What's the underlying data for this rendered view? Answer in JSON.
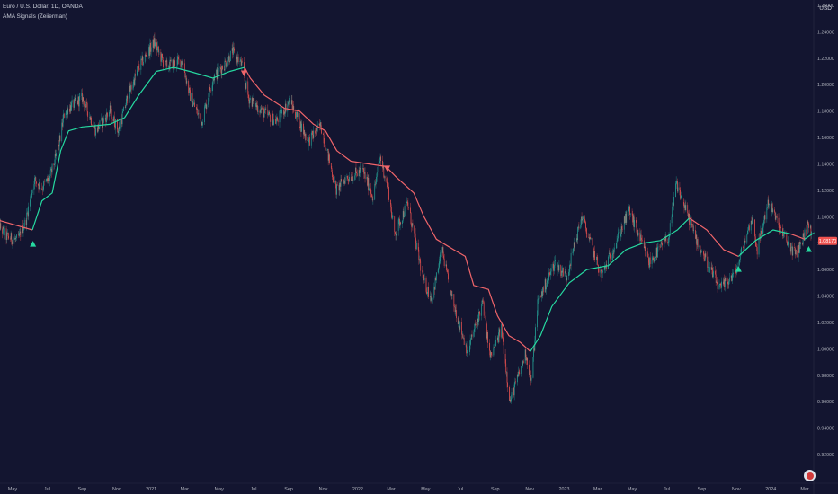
{
  "header": {
    "symbol_line": "Euro / U.S. Dollar, 1D, OANDA",
    "indicator_line": "AMA Signals (Zeiierman)"
  },
  "price_scale": {
    "currency": "USD",
    "last_price_label": "1.08170"
  },
  "colors": {
    "background": "#131530",
    "bullish": "#26d9a0",
    "bearish": "#f0656a",
    "candle_up": "#26a69a",
    "candle_down": "#ef5350",
    "axis_text": "#b2b5be"
  },
  "icons": {
    "badge": "flag-icon"
  },
  "chart_data": {
    "type": "line",
    "title": "Euro / U.S. Dollar, 1D, OANDA",
    "xlabel": "",
    "ylabel": "",
    "y_ticks": [
      "0.92000",
      "0.94000",
      "0.96000",
      "0.98000",
      "1.00000",
      "1.02000",
      "1.04000",
      "1.06000",
      "1.08000",
      "1.10000",
      "1.12000",
      "1.14000",
      "1.16000",
      "1.18000",
      "1.20000",
      "1.22000",
      "1.24000",
      "1.26000"
    ],
    "ylim": [
      0.915,
      1.265
    ],
    "x_range": [
      "2020-05-01",
      "2024-03-18"
    ],
    "x_ticks": [
      {
        "label": "May",
        "date": "2020-05-01"
      },
      {
        "label": "Jul",
        "date": "2020-07-01"
      },
      {
        "label": "Sep",
        "date": "2020-09-01"
      },
      {
        "label": "Nov",
        "date": "2020-11-01"
      },
      {
        "label": "2021",
        "date": "2021-01-01"
      },
      {
        "label": "Mar",
        "date": "2021-03-01"
      },
      {
        "label": "May",
        "date": "2021-05-01"
      },
      {
        "label": "Jul",
        "date": "2021-07-01"
      },
      {
        "label": "Sep",
        "date": "2021-09-01"
      },
      {
        "label": "Nov",
        "date": "2021-11-01"
      },
      {
        "label": "2022",
        "date": "2022-01-01"
      },
      {
        "label": "Mar",
        "date": "2022-03-01"
      },
      {
        "label": "May",
        "date": "2022-05-01"
      },
      {
        "label": "Jul",
        "date": "2022-07-01"
      },
      {
        "label": "Sep",
        "date": "2022-09-01"
      },
      {
        "label": "Nov",
        "date": "2022-11-01"
      },
      {
        "label": "2023",
        "date": "2023-01-01"
      },
      {
        "label": "Mar",
        "date": "2023-03-01"
      },
      {
        "label": "May",
        "date": "2023-05-01"
      },
      {
        "label": "Jul",
        "date": "2023-07-01"
      },
      {
        "label": "Sep",
        "date": "2023-09-01"
      },
      {
        "label": "Nov",
        "date": "2023-11-01"
      },
      {
        "label": "2024",
        "date": "2024-01-01"
      },
      {
        "label": "Mar",
        "date": "2024-03-01"
      }
    ],
    "price": [
      {
        "date": "2020-04-01",
        "value": 1.097
      },
      {
        "date": "2020-04-20",
        "value": 1.085
      },
      {
        "date": "2020-05-10",
        "value": 1.082
      },
      {
        "date": "2020-05-25",
        "value": 1.098
      },
      {
        "date": "2020-06-08",
        "value": 1.128
      },
      {
        "date": "2020-06-22",
        "value": 1.122
      },
      {
        "date": "2020-07-06",
        "value": 1.13
      },
      {
        "date": "2020-07-20",
        "value": 1.15
      },
      {
        "date": "2020-08-01",
        "value": 1.18
      },
      {
        "date": "2020-08-17",
        "value": 1.185
      },
      {
        "date": "2020-09-01",
        "value": 1.19
      },
      {
        "date": "2020-09-25",
        "value": 1.165
      },
      {
        "date": "2020-10-20",
        "value": 1.18
      },
      {
        "date": "2020-11-04",
        "value": 1.165
      },
      {
        "date": "2020-11-20",
        "value": 1.19
      },
      {
        "date": "2020-12-10",
        "value": 1.213
      },
      {
        "date": "2021-01-06",
        "value": 1.232
      },
      {
        "date": "2021-01-25",
        "value": 1.214
      },
      {
        "date": "2021-02-25",
        "value": 1.218
      },
      {
        "date": "2021-03-10",
        "value": 1.192
      },
      {
        "date": "2021-03-31",
        "value": 1.172
      },
      {
        "date": "2021-04-20",
        "value": 1.205
      },
      {
        "date": "2021-05-10",
        "value": 1.215
      },
      {
        "date": "2021-05-25",
        "value": 1.225
      },
      {
        "date": "2021-06-10",
        "value": 1.215
      },
      {
        "date": "2021-06-22",
        "value": 1.19
      },
      {
        "date": "2021-07-15",
        "value": 1.18
      },
      {
        "date": "2021-08-10",
        "value": 1.172
      },
      {
        "date": "2021-09-03",
        "value": 1.188
      },
      {
        "date": "2021-10-05",
        "value": 1.157
      },
      {
        "date": "2021-10-28",
        "value": 1.169
      },
      {
        "date": "2021-11-24",
        "value": 1.12
      },
      {
        "date": "2021-12-10",
        "value": 1.129
      },
      {
        "date": "2022-01-10",
        "value": 1.135
      },
      {
        "date": "2022-01-28",
        "value": 1.115
      },
      {
        "date": "2022-02-10",
        "value": 1.145
      },
      {
        "date": "2022-02-24",
        "value": 1.12
      },
      {
        "date": "2022-03-07",
        "value": 1.087
      },
      {
        "date": "2022-03-30",
        "value": 1.11
      },
      {
        "date": "2022-04-28",
        "value": 1.05
      },
      {
        "date": "2022-05-12",
        "value": 1.038
      },
      {
        "date": "2022-05-30",
        "value": 1.075
      },
      {
        "date": "2022-06-14",
        "value": 1.042
      },
      {
        "date": "2022-07-14",
        "value": 0.998
      },
      {
        "date": "2022-08-10",
        "value": 1.035
      },
      {
        "date": "2022-08-23",
        "value": 0.993
      },
      {
        "date": "2022-09-12",
        "value": 1.015
      },
      {
        "date": "2022-09-27",
        "value": 0.96
      },
      {
        "date": "2022-10-25",
        "value": 0.997
      },
      {
        "date": "2022-11-04",
        "value": 0.975
      },
      {
        "date": "2022-11-15",
        "value": 1.035
      },
      {
        "date": "2022-12-15",
        "value": 1.065
      },
      {
        "date": "2023-01-05",
        "value": 1.055
      },
      {
        "date": "2023-02-01",
        "value": 1.1
      },
      {
        "date": "2023-03-08",
        "value": 1.055
      },
      {
        "date": "2023-04-26",
        "value": 1.105
      },
      {
        "date": "2023-05-31",
        "value": 1.065
      },
      {
        "date": "2023-07-05",
        "value": 1.085
      },
      {
        "date": "2023-07-18",
        "value": 1.125
      },
      {
        "date": "2023-08-25",
        "value": 1.08
      },
      {
        "date": "2023-10-03",
        "value": 1.045
      },
      {
        "date": "2023-10-31",
        "value": 1.058
      },
      {
        "date": "2023-11-29",
        "value": 1.1
      },
      {
        "date": "2023-12-08",
        "value": 1.075
      },
      {
        "date": "2023-12-28",
        "value": 1.112
      },
      {
        "date": "2024-01-20",
        "value": 1.088
      },
      {
        "date": "2024-02-14",
        "value": 1.071
      },
      {
        "date": "2024-03-08",
        "value": 1.094
      },
      {
        "date": "2024-03-18",
        "value": 1.0817
      }
    ],
    "series": [
      {
        "color": "#f0656a",
        "values": [
          {
            "date": "2020-04-01",
            "value": 1.098
          },
          {
            "date": "2020-06-05",
            "value": 1.09
          }
        ]
      },
      {
        "color": "#26d9a0",
        "values": [
          {
            "date": "2020-06-05",
            "value": 1.09
          },
          {
            "date": "2020-06-22",
            "value": 1.112
          },
          {
            "date": "2020-07-10",
            "value": 1.118
          },
          {
            "date": "2020-07-25",
            "value": 1.15
          },
          {
            "date": "2020-08-08",
            "value": 1.165
          },
          {
            "date": "2020-09-01",
            "value": 1.168
          },
          {
            "date": "2020-10-20",
            "value": 1.17
          },
          {
            "date": "2020-11-15",
            "value": 1.175
          },
          {
            "date": "2020-12-10",
            "value": 1.192
          },
          {
            "date": "2021-01-10",
            "value": 1.21
          },
          {
            "date": "2021-02-10",
            "value": 1.213
          },
          {
            "date": "2021-03-10",
            "value": 1.21
          },
          {
            "date": "2021-04-20",
            "value": 1.205
          },
          {
            "date": "2021-05-20",
            "value": 1.21
          },
          {
            "date": "2021-06-15",
            "value": 1.213
          }
        ]
      },
      {
        "color": "#f0656a",
        "values": [
          {
            "date": "2021-06-15",
            "value": 1.213
          },
          {
            "date": "2021-06-25",
            "value": 1.205
          },
          {
            "date": "2021-07-20",
            "value": 1.192
          },
          {
            "date": "2021-08-25",
            "value": 1.182
          },
          {
            "date": "2021-09-20",
            "value": 1.18
          },
          {
            "date": "2021-10-15",
            "value": 1.17
          },
          {
            "date": "2021-11-05",
            "value": 1.165
          },
          {
            "date": "2021-11-25",
            "value": 1.15
          },
          {
            "date": "2021-12-20",
            "value": 1.142
          },
          {
            "date": "2022-01-20",
            "value": 1.14
          },
          {
            "date": "2022-02-20",
            "value": 1.138
          },
          {
            "date": "2022-03-10",
            "value": 1.13
          },
          {
            "date": "2022-04-10",
            "value": 1.118
          },
          {
            "date": "2022-04-28",
            "value": 1.1
          },
          {
            "date": "2022-05-20",
            "value": 1.083
          },
          {
            "date": "2022-06-20",
            "value": 1.075
          },
          {
            "date": "2022-07-10",
            "value": 1.07
          },
          {
            "date": "2022-07-25",
            "value": 1.048
          },
          {
            "date": "2022-08-20",
            "value": 1.045
          },
          {
            "date": "2022-09-05",
            "value": 1.025
          },
          {
            "date": "2022-09-25",
            "value": 1.01
          },
          {
            "date": "2022-10-15",
            "value": 1.005
          },
          {
            "date": "2022-11-02",
            "value": 0.998
          }
        ]
      },
      {
        "color": "#26d9a0",
        "values": [
          {
            "date": "2022-11-02",
            "value": 0.998
          },
          {
            "date": "2022-11-20",
            "value": 1.01
          },
          {
            "date": "2022-12-10",
            "value": 1.032
          },
          {
            "date": "2023-01-10",
            "value": 1.05
          },
          {
            "date": "2023-02-10",
            "value": 1.06
          },
          {
            "date": "2023-03-20",
            "value": 1.063
          },
          {
            "date": "2023-04-20",
            "value": 1.075
          },
          {
            "date": "2023-05-20",
            "value": 1.08
          },
          {
            "date": "2023-06-20",
            "value": 1.082
          },
          {
            "date": "2023-07-20",
            "value": 1.09
          },
          {
            "date": "2023-08-10",
            "value": 1.099
          }
        ]
      },
      {
        "color": "#f0656a",
        "values": [
          {
            "date": "2023-08-10",
            "value": 1.099
          },
          {
            "date": "2023-09-10",
            "value": 1.09
          },
          {
            "date": "2023-10-10",
            "value": 1.075
          },
          {
            "date": "2023-11-05",
            "value": 1.07
          }
        ]
      },
      {
        "color": "#26d9a0",
        "values": [
          {
            "date": "2023-11-05",
            "value": 1.07
          },
          {
            "date": "2023-12-05",
            "value": 1.082
          },
          {
            "date": "2024-01-05",
            "value": 1.09
          },
          {
            "date": "2024-02-05",
            "value": 1.087
          }
        ]
      },
      {
        "color": "#f0656a",
        "values": [
          {
            "date": "2024-02-05",
            "value": 1.087
          },
          {
            "date": "2024-03-01",
            "value": 1.083
          }
        ]
      },
      {
        "color": "#26d9a0",
        "values": [
          {
            "date": "2024-03-01",
            "value": 1.083
          },
          {
            "date": "2024-03-18",
            "value": 1.088
          }
        ]
      }
    ],
    "signals": [
      {
        "date": "2020-06-06",
        "value": 1.079,
        "direction": "up"
      },
      {
        "date": "2021-06-14",
        "value": 1.209,
        "direction": "down"
      },
      {
        "date": "2022-02-22",
        "value": 1.137,
        "direction": "down"
      },
      {
        "date": "2023-11-05",
        "value": 1.06,
        "direction": "up"
      },
      {
        "date": "2024-03-08",
        "value": 1.075,
        "direction": "up"
      }
    ]
  }
}
